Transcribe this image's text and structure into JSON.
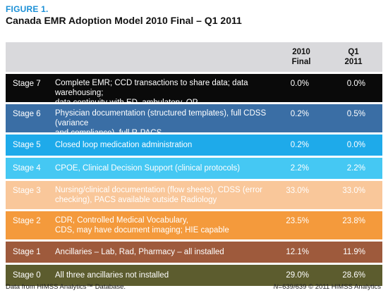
{
  "figure": {
    "label": "FIGURE 1.",
    "title": "Canada EMR Adoption Model 2010 Final – Q1 2011"
  },
  "table": {
    "headers": {
      "col2010_line1": "2010",
      "col2010_line2": "Final",
      "colq1_line1": "Q1",
      "colq1_line2": "2011"
    },
    "rows": [
      {
        "stage": "Stage 7",
        "desc_line1": "Complete EMR; CCD transactions to share data; data warehousing;",
        "desc_line2": "data continuity with ED, ambulatory, OP",
        "v2010": "0.0%",
        "vq1": "0.0%",
        "bg": "#0a0a0a",
        "fg": "#ffffff"
      },
      {
        "stage": "Stage 6",
        "desc_line1": "Physician documentation (structured templates), full CDSS (variance",
        "desc_line2": "and compliance), full R-PACS",
        "v2010": "0.2%",
        "vq1": "0.5%",
        "bg": "#3a6ea5",
        "fg": "#ffffff"
      },
      {
        "stage": "Stage 5",
        "desc_line1": "Closed loop medication administration",
        "desc_line2": "",
        "v2010": "0.2%",
        "vq1": "0.0%",
        "bg": "#1eaaea",
        "fg": "#ffffff"
      },
      {
        "stage": "Stage 4",
        "desc_line1": "CPOE, Clinical Decision Support (clinical protocols)",
        "desc_line2": "",
        "v2010": "2.2%",
        "vq1": "2.2%",
        "bg": "#45c8f3",
        "fg": "#ffffff"
      },
      {
        "stage": "Stage 3",
        "desc_line1": "Nursing/clinical documentation (flow sheets), CDSS (error",
        "desc_line2": "checking), PACS available outside Radiology",
        "v2010": "33.0%",
        "vq1": "33.0%",
        "bg": "#f9c79a",
        "fg": "#ffffff"
      },
      {
        "stage": "Stage 2",
        "desc_line1": "CDR, Controlled Medical Vocabulary,",
        "desc_line2": "CDS, may have document imaging; HIE capable",
        "v2010": "23.5%",
        "vq1": "23.8%",
        "bg": "#f49a3c",
        "fg": "#ffffff"
      },
      {
        "stage": "Stage 1",
        "desc_line1": "Ancillaries – Lab, Rad, Pharmacy – all installed",
        "desc_line2": "",
        "v2010": "12.1%",
        "vq1": "11.9%",
        "bg": "#9e5a3c",
        "fg": "#ffffff"
      },
      {
        "stage": "Stage 0",
        "desc_line1": "All three ancillaries not installed",
        "desc_line2": "",
        "v2010": "29.0%",
        "vq1": "28.6%",
        "bg": "#5c5c2e",
        "fg": "#ffffff"
      }
    ]
  },
  "footer": {
    "left": "Data from HIMSS Analytics™ Database.",
    "right_n": "N",
    "right_rest": "=639/639 © 2011 HIMSS Analytics"
  }
}
